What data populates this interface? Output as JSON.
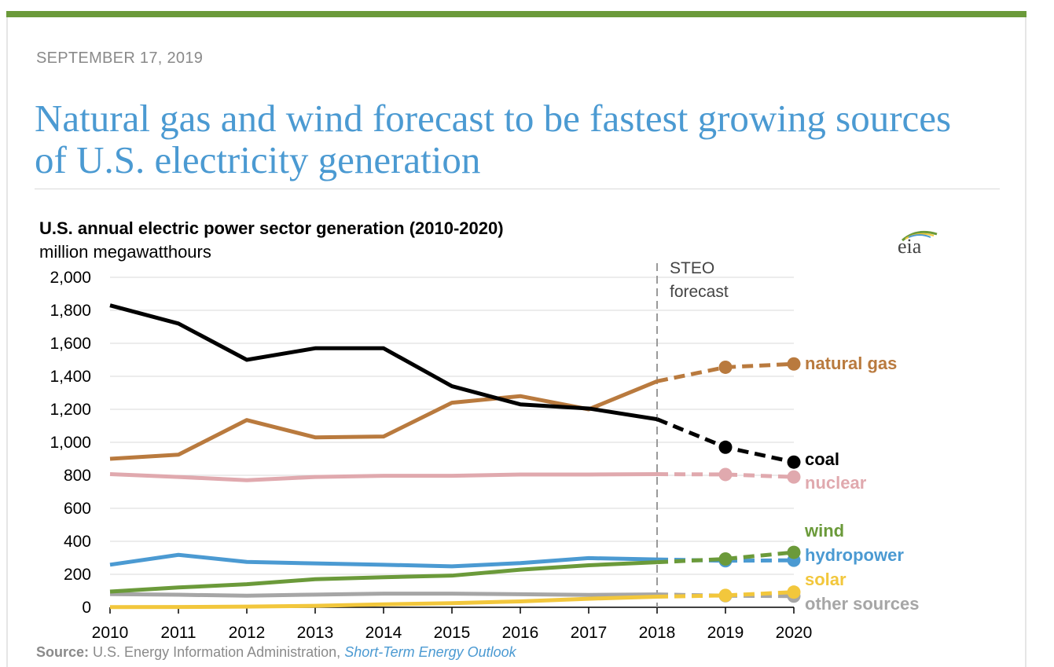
{
  "date": "SEPTEMBER 17, 2019",
  "headline": "Natural gas and wind forecast to be fastest growing sources of U.S. electricity generation",
  "chart_data": {
    "type": "line",
    "title": "U.S. annual electric power sector generation (2010-2020)",
    "ylabel": "million megawatthours",
    "xlabel": "",
    "x": [
      2010,
      2011,
      2012,
      2013,
      2014,
      2015,
      2016,
      2017,
      2018,
      2019,
      2020
    ],
    "ylim": [
      0,
      2000
    ],
    "yticks": [
      0,
      200,
      400,
      600,
      800,
      1000,
      1200,
      1400,
      1600,
      1800,
      2000
    ],
    "ytick_labels": [
      "0",
      "200",
      "400",
      "600",
      "800",
      "1,000",
      "1,200",
      "1,400",
      "1,600",
      "1,800",
      "2,000"
    ],
    "forecast_start": 2018,
    "forecast_label_line1": "STEO",
    "forecast_label_line2": "forecast",
    "grid": true,
    "series": [
      {
        "name": "natural gas",
        "color": "#b97a3e",
        "values": [
          900,
          925,
          1135,
          1030,
          1035,
          1240,
          1280,
          1200,
          1370,
          1455,
          1475
        ]
      },
      {
        "name": "coal",
        "color": "#000000",
        "values": [
          1830,
          1720,
          1500,
          1570,
          1570,
          1340,
          1230,
          1205,
          1140,
          970,
          880
        ]
      },
      {
        "name": "nuclear",
        "color": "#e0a9ae",
        "values": [
          807,
          790,
          770,
          790,
          797,
          797,
          805,
          805,
          807,
          805,
          790
        ]
      },
      {
        "name": "wind",
        "color": "#6b9a3a",
        "values": [
          95,
          120,
          140,
          170,
          182,
          192,
          228,
          255,
          273,
          293,
          333
        ]
      },
      {
        "name": "hydropower",
        "color": "#4b9ad2",
        "values": [
          258,
          318,
          275,
          266,
          258,
          248,
          268,
          298,
          290,
          282,
          285
        ]
      },
      {
        "name": "solar",
        "color": "#f2c73c",
        "values": [
          1,
          2,
          4,
          9,
          18,
          25,
          36,
          52,
          64,
          72,
          92
        ]
      },
      {
        "name": "other sources",
        "color": "#a6a6a6",
        "values": [
          80,
          76,
          70,
          77,
          83,
          83,
          79,
          75,
          78,
          70,
          68
        ]
      }
    ]
  },
  "source_label": "Source:",
  "source_text": "U.S. Energy Information Administration,",
  "source_link": "Short-Term Energy Outlook",
  "logo_text": "eia"
}
